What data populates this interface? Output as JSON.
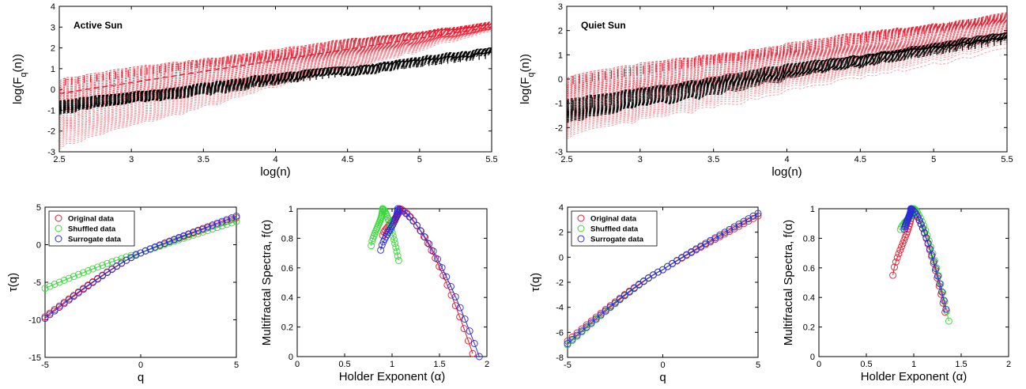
{
  "colors": {
    "red": "#e8192c",
    "red_light": "#f2a0a6",
    "black": "#000000",
    "green": "#3cd63c",
    "blue": "#2a2ad8"
  },
  "chart_data": [
    {
      "id": "active_fq",
      "type": "line",
      "title": "Active Sun",
      "xlabel": "log(n)",
      "ylabel": "log(F_q(n))",
      "xlim": [
        2.5,
        5.5
      ],
      "ylim": [
        -3,
        4
      ],
      "xticks": [
        "2.5",
        "3",
        "3.5",
        "4",
        "4.5",
        "5",
        "5.5"
      ],
      "yticks": [
        "-3",
        "-2",
        "-1",
        "0",
        "1",
        "2",
        "3",
        "4"
      ],
      "series": [
        {
          "group": "red",
          "x": [
            2.5,
            5.5
          ],
          "upper": [
            0.5,
            3.25
          ],
          "lower": [
            -2.8,
            2.8
          ],
          "slope_mid": [
            -0.2,
            3.0
          ]
        },
        {
          "group": "black",
          "x": [
            2.5,
            5.5
          ],
          "upper": [
            -0.6,
            1.95
          ],
          "lower": [
            -1.2,
            1.6
          ]
        }
      ],
      "grid": false
    },
    {
      "id": "quiet_fq",
      "type": "line",
      "title": "Quiet Sun",
      "xlabel": "log(n)",
      "ylabel": "log(F_q(n))",
      "xlim": [
        2.5,
        5.5
      ],
      "ylim": [
        -3,
        3
      ],
      "xticks": [
        "2.5",
        "3",
        "3.5",
        "4",
        "4.5",
        "5",
        "5.5"
      ],
      "yticks": [
        "-3",
        "-2",
        "-1",
        "0",
        "1",
        "2",
        "3"
      ],
      "series": [
        {
          "group": "red",
          "x": [
            2.5,
            5.5
          ],
          "upper": [
            0.1,
            2.7
          ],
          "lower": [
            -2.4,
            1.2
          ]
        },
        {
          "group": "black",
          "x": [
            2.5,
            5.5
          ],
          "upper": [
            -0.9,
            1.9
          ],
          "lower": [
            -1.8,
            1.6
          ]
        }
      ],
      "grid": false
    },
    {
      "id": "active_tau",
      "type": "scatter",
      "xlabel": "q",
      "ylabel": "τ(q)",
      "xlim": [
        -5,
        5
      ],
      "ylim": [
        -15,
        5
      ],
      "xticks": [
        "-5",
        "0",
        "5"
      ],
      "yticks": [
        "-15",
        "-10",
        "-5",
        "0",
        "5"
      ],
      "legend": {
        "position": "top-left",
        "entries": [
          "Original data",
          "Shuffled data",
          "Surrogate data"
        ]
      },
      "series": [
        {
          "name": "Original data",
          "color": "red",
          "q": [
            -5,
            0,
            5
          ],
          "tau": [
            -9.6,
            -1.1,
            3.6
          ]
        },
        {
          "name": "Shuffled data",
          "color": "green",
          "q": [
            -5,
            0,
            5
          ],
          "tau": [
            -5.8,
            -1.1,
            3.1
          ]
        },
        {
          "name": "Surrogate data",
          "color": "blue",
          "q": [
            -5,
            0,
            5
          ],
          "tau": [
            -9.8,
            -1.1,
            3.8
          ]
        }
      ]
    },
    {
      "id": "active_spectrum",
      "type": "scatter",
      "xlabel": "Holder Exponent (α)",
      "ylabel": "Multifractal Spectra, f(α)",
      "xlim": [
        0,
        2
      ],
      "ylim": [
        0,
        1
      ],
      "xticks": [
        "0",
        "0.5",
        "1",
        "1.5",
        "2"
      ],
      "yticks": [
        "0",
        "0.2",
        "0.4",
        "0.6",
        "0.8",
        "1"
      ],
      "series": [
        {
          "name": "Original data",
          "color": "red",
          "amin": 0.9,
          "apeak": 1.08,
          "amax": 1.85,
          "fleft": 0.82,
          "fright": 0.02
        },
        {
          "name": "Shuffled data",
          "color": "green",
          "amin": 0.78,
          "apeak": 0.9,
          "amax": 1.07,
          "fleft": 0.75,
          "fright": 0.65
        },
        {
          "name": "Surrogate data",
          "color": "blue",
          "amin": 0.88,
          "apeak": 1.06,
          "amax": 1.92,
          "fleft": 0.72,
          "fright": 0.0
        }
      ]
    },
    {
      "id": "quiet_tau",
      "type": "scatter",
      "xlabel": "q",
      "ylabel": "τ(q)",
      "xlim": [
        -5,
        5
      ],
      "ylim": [
        -8,
        4
      ],
      "xticks": [
        "-5",
        "0",
        "5"
      ],
      "yticks": [
        "-8",
        "-6",
        "-4",
        "-2",
        "0",
        "2",
        "4"
      ],
      "legend": {
        "position": "top-left",
        "entries": [
          "Original data",
          "Shuffled data",
          "Surrogate data"
        ]
      },
      "series": [
        {
          "name": "Original data",
          "color": "red",
          "q": [
            -5,
            0,
            5
          ],
          "tau": [
            -6.7,
            -1.0,
            3.3
          ]
        },
        {
          "name": "Shuffled data",
          "color": "green",
          "q": [
            -5,
            0,
            5
          ],
          "tau": [
            -7.0,
            -1.0,
            3.5
          ]
        },
        {
          "name": "Surrogate data",
          "color": "blue",
          "q": [
            -5,
            0,
            5
          ],
          "tau": [
            -6.9,
            -1.0,
            3.5
          ]
        }
      ]
    },
    {
      "id": "quiet_spectrum",
      "type": "scatter",
      "xlabel": "Holder Exponent (α)",
      "ylabel": "Multifractal Spectra, f(α)",
      "xlim": [
        0,
        2
      ],
      "ylim": [
        0,
        1
      ],
      "xticks": [
        "0",
        "0.5",
        "1",
        "1.5",
        "2"
      ],
      "yticks": [
        "0",
        "0.2",
        "0.4",
        "0.6",
        "0.8",
        "1"
      ],
      "series": [
        {
          "name": "Original data",
          "color": "red",
          "amin": 0.78,
          "apeak": 0.98,
          "amax": 1.33,
          "fleft": 0.55,
          "fright": 0.3
        },
        {
          "name": "Shuffled data",
          "color": "green",
          "amin": 0.86,
          "apeak": 1.0,
          "amax": 1.37,
          "fleft": 0.86,
          "fright": 0.24
        },
        {
          "name": "Surrogate data",
          "color": "blue",
          "amin": 0.9,
          "apeak": 0.97,
          "amax": 1.34,
          "fleft": 0.86,
          "fright": 0.32
        }
      ]
    }
  ]
}
